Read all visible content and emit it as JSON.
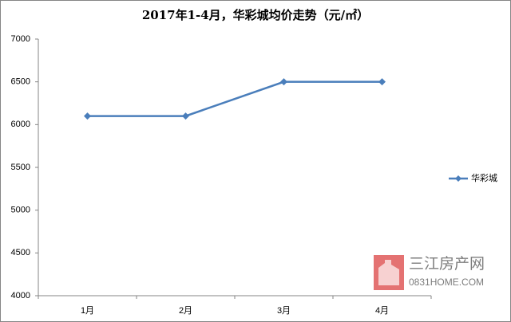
{
  "chart_data": {
    "type": "line",
    "title": "2017年1-4月，华彩城均价走势（元/㎡）",
    "categories": [
      "1月",
      "2月",
      "3月",
      "4月"
    ],
    "series": [
      {
        "name": "华彩城",
        "color": "#4a7ebb",
        "values": [
          6100,
          6100,
          6500,
          6500
        ]
      }
    ],
    "ylim": [
      4000,
      7000
    ],
    "yticks": [
      4000,
      4500,
      5000,
      5500,
      6000,
      6500,
      7000
    ],
    "grid": false,
    "legend": "right",
    "annotations": [
      "三江房产网",
      "0831HOME.COM"
    ]
  }
}
